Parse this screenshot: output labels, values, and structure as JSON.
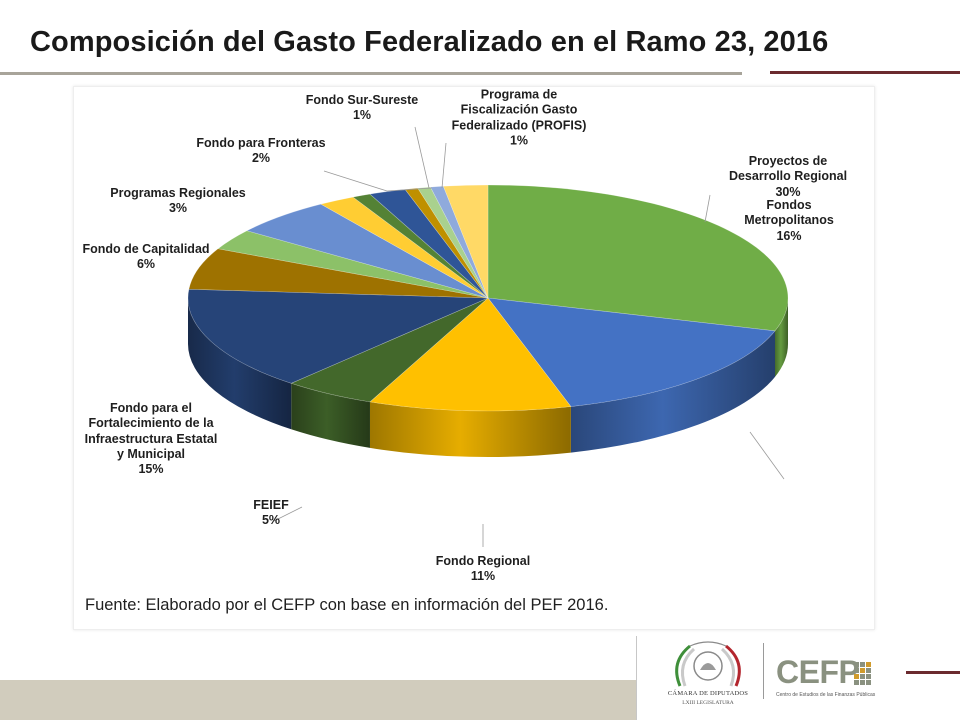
{
  "title": "Composición del Gasto Federalizado en el Ramo 23, 2016",
  "source_note": "Fuente: Elaborado por el CEFP con base en información del PEF 2016.",
  "logos": {
    "camara_line1": "CÁMARA DE DIPUTADOS",
    "camara_line2": "LXIII LEGISLATURA",
    "cefp_wordmark": "CEFP",
    "cefp_subtitle": "Centro de Estudios de las Finanzas Públicas"
  },
  "chart_data": {
    "type": "pie",
    "title": "",
    "start_angle_deg": 0,
    "direction": "clockwise",
    "slices": [
      {
        "label": "Proyectos de Desarrollo Regional",
        "label_lines": [
          "Proyectos de",
          "Desarrollo Regional"
        ],
        "value": 30.0,
        "value_label": "30%",
        "color": "#70AD47"
      },
      {
        "label": "Fondos Metropolitanos",
        "label_lines": [
          "Fondos",
          "Metropolitanos"
        ],
        "value": 16.0,
        "value_label": "16%",
        "color": "#4472C4"
      },
      {
        "label": "Fondo Regional",
        "label_lines": [
          "Fondo Regional"
        ],
        "value": 11.0,
        "value_label": "11%",
        "color": "#FFC000"
      },
      {
        "label": "FEIEF",
        "label_lines": [
          "FEIEF"
        ],
        "value": 5.0,
        "value_label": "5%",
        "color": "#43682B"
      },
      {
        "label": "Fondo para el Fortalecimiento de la Infraestructura Estatal y Municipal",
        "label_lines": [
          "Fondo para el",
          "Fortalecimiento de la",
          "Infraestructura Estatal",
          "y Municipal"
        ],
        "value": 15.0,
        "value_label": "15%",
        "color": "#264478"
      },
      {
        "label": "Fondo de Capitalidad",
        "label_lines": [
          "Fondo de Capitalidad"
        ],
        "value": 6.0,
        "value_label": "6%",
        "color": "#9E7200"
      },
      {
        "label": "Programas Regionales",
        "label_lines": [
          "Programas Regionales"
        ],
        "value": 3.0,
        "value_label": "3%",
        "color": "#8CC168"
      },
      {
        "label": "",
        "label_lines": [],
        "value": 5.5,
        "value_label": "",
        "color": "#698ED0"
      },
      {
        "label": "",
        "label_lines": [],
        "value": 2.0,
        "value_label": "",
        "color": "#FFCD33"
      },
      {
        "label": "",
        "label_lines": [],
        "value": 1.0,
        "value_label": "",
        "color": "#548235"
      },
      {
        "label": "Fondo para Fronteras",
        "label_lines": [
          "Fondo para Fronteras"
        ],
        "value": 2.0,
        "value_label": "2%",
        "color": "#2F5597"
      },
      {
        "label": "Fondo Sur-Sureste",
        "label_lines": [
          "Fondo Sur-Sureste"
        ],
        "value": 0.7,
        "value_label": "1%",
        "color": "#BF9000"
      },
      {
        "label": "Programa de Fiscalización Gasto Federalizado (PROFIS)",
        "label_lines": [
          "Programa de",
          "Fiscalización Gasto",
          "Federalizado (PROFIS)"
        ],
        "value": 0.7,
        "value_label": "1%",
        "color": "#A9D18E"
      },
      {
        "label": "",
        "label_lines": [],
        "value": 0.7,
        "value_label": "",
        "color": "#8FAADC"
      },
      {
        "label": "",
        "label_lines": [],
        "value": 2.4,
        "value_label": "",
        "color": "#FFD966"
      }
    ],
    "legend": "none"
  }
}
